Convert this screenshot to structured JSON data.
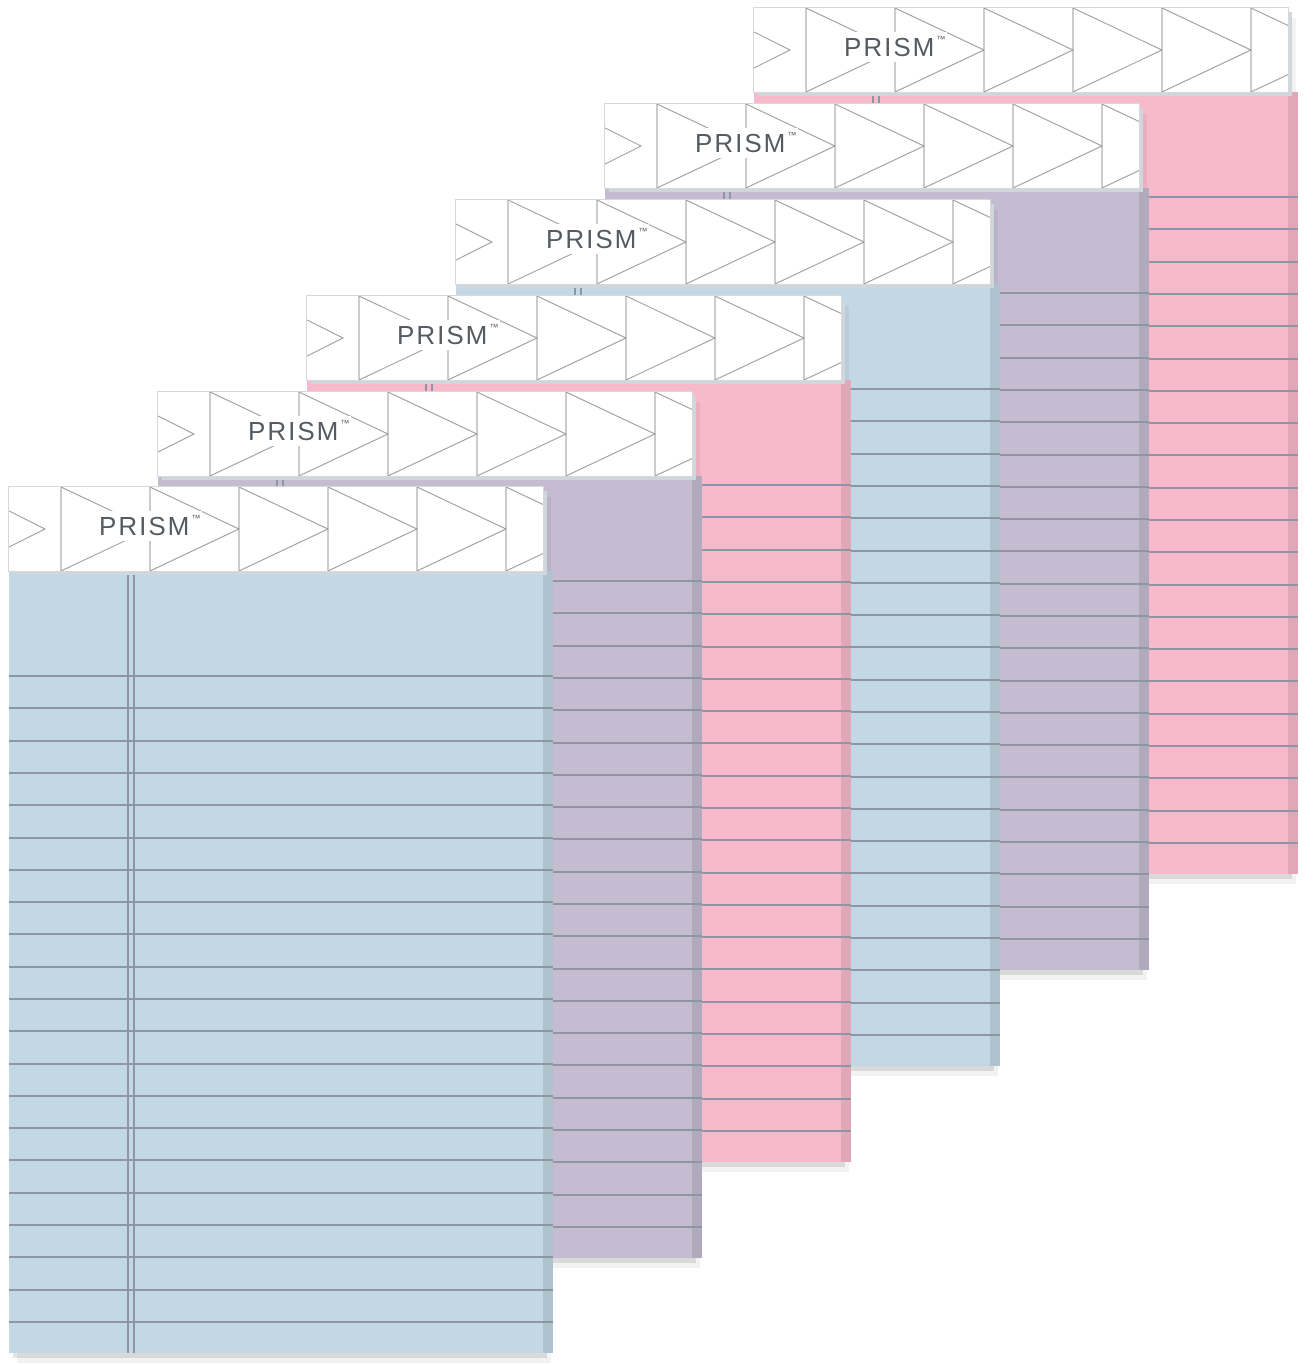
{
  "product": {
    "brand": "PRISM",
    "trademark": "™"
  },
  "colors": {
    "blue": "#c2d9e5",
    "orchid": "#c5bcd1",
    "pink": "#f8b9cc",
    "rule_line": "#8f96a3",
    "header_pattern": "#9a9a9a"
  },
  "pads": [
    {
      "color": "pink"
    },
    {
      "color": "orchid"
    },
    {
      "color": "blue"
    },
    {
      "color": "pink"
    },
    {
      "color": "orchid"
    },
    {
      "color": "blue"
    }
  ]
}
